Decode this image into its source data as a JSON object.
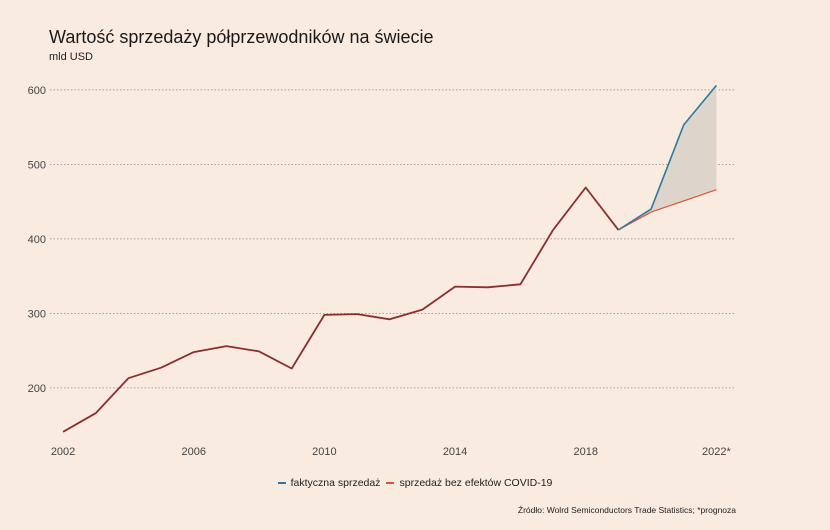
{
  "title": "Wartość sprzedaży półprzewodników na świecie",
  "subtitle": "mld USD",
  "source": "Źródło: Wolrd Semiconductors Trade Statistics; *prognoza",
  "colors": {
    "background": "#faebe0",
    "history": "#8b2e2e",
    "actual": "#2b7a9e",
    "no_covid": "#d9553a",
    "band": "#ddd5cc",
    "grid": "#888888"
  },
  "chart_data": {
    "type": "line",
    "title": "Wartość sprzedaży półprzewodników na świecie",
    "subtitle": "mld USD",
    "x_ticks": [
      2002,
      2006,
      2010,
      2014,
      2018,
      2022
    ],
    "x_tick_labels": [
      "2002",
      "2006",
      "2010",
      "2014",
      "2018",
      "2022*"
    ],
    "y_ticks": [
      200,
      300,
      400,
      500,
      600
    ],
    "y_tick_labels": [
      "200",
      "300",
      "400",
      "500",
      "600"
    ],
    "xlim": [
      2001.6,
      2022.6
    ],
    "ylim": [
      130,
      620
    ],
    "grid": "horizontal dotted",
    "legend_position": "bottom",
    "historical": {
      "x": [
        2002,
        2003,
        2004,
        2005,
        2006,
        2007,
        2008,
        2009,
        2010,
        2011,
        2012,
        2013,
        2014,
        2015,
        2016,
        2017,
        2018,
        2019
      ],
      "values": [
        141,
        166,
        213,
        227,
        248,
        256,
        249,
        226,
        298,
        299,
        292,
        305,
        336,
        335,
        339,
        412,
        469,
        412
      ]
    },
    "series": [
      {
        "name": "faktyczna sprzedaż",
        "x": [
          2019,
          2020,
          2021,
          2022
        ],
        "values": [
          412,
          440,
          553,
          606
        ]
      },
      {
        "name": "sprzedaż bez efektów COVID-19",
        "x": [
          2019,
          2020,
          2021,
          2022
        ],
        "values": [
          412,
          436,
          451,
          466
        ]
      }
    ]
  }
}
